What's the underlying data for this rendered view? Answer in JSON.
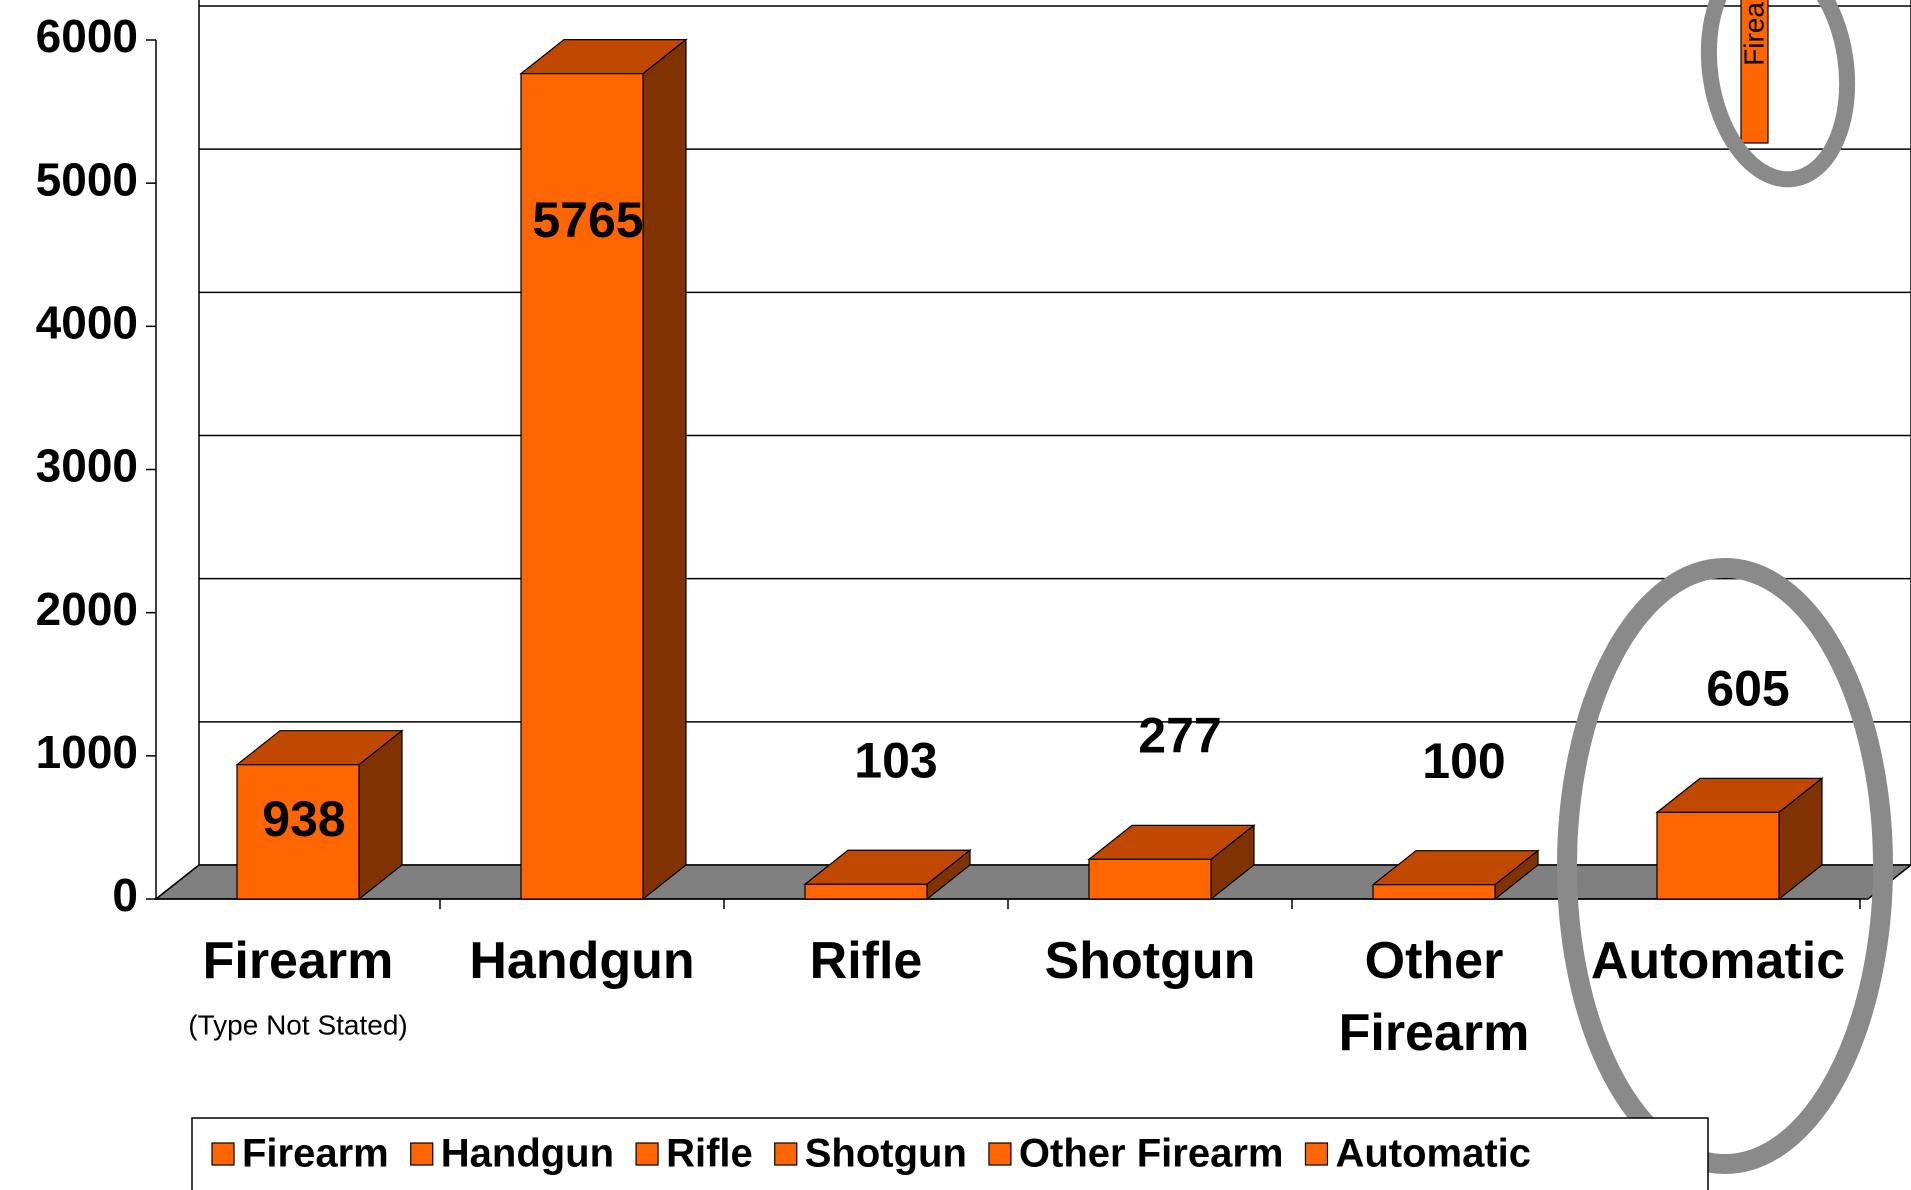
{
  "chart_data": {
    "type": "bar3d",
    "categories": [
      "Firearm",
      "Handgun",
      "Rifle",
      "Shotgun",
      "Other Firearm",
      "Automatic"
    ],
    "category_note": "(Type Not Stated)",
    "values": [
      938,
      5765,
      103,
      277,
      100,
      605
    ],
    "color": "#ff6600",
    "ylim": [
      0,
      6000
    ],
    "yticks": [
      0,
      1000,
      2000,
      3000,
      4000,
      5000,
      6000
    ],
    "grid": true,
    "legend": "bottom",
    "annotation": "Firea"
  }
}
